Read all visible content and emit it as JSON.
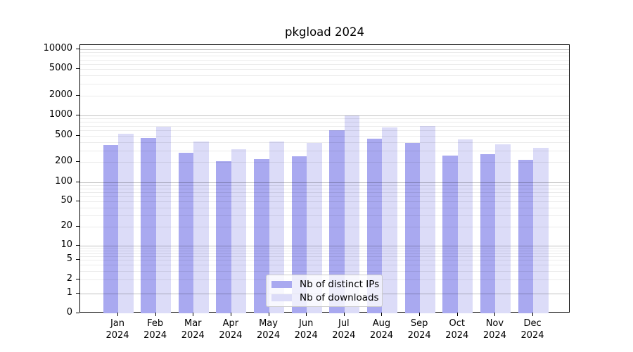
{
  "title": "pkgload 2024",
  "chart_data": {
    "type": "bar",
    "title": "pkgload 2024",
    "categories": [
      "Jan 2024",
      "Feb 2024",
      "Mar 2024",
      "Apr 2024",
      "May 2024",
      "Jun 2024",
      "Jul 2024",
      "Aug 2024",
      "Sep 2024",
      "Oct 2024",
      "Nov 2024",
      "Dec 2024"
    ],
    "series": [
      {
        "name": "Nb of distinct IPs",
        "color": "#a9a9f0",
        "values": [
          360,
          465,
          275,
          205,
          220,
          245,
          605,
          450,
          390,
          250,
          265,
          215
        ]
      },
      {
        "name": "Nb of downloads",
        "color": "#dcdcf8",
        "values": [
          530,
          680,
          405,
          310,
          405,
          385,
          1000,
          670,
          700,
          440,
          370,
          330
        ]
      }
    ],
    "xlabel": "",
    "ylabel": "",
    "yscale": "symlog",
    "ylim": [
      0,
      11600
    ],
    "yticks": [
      0,
      1,
      2,
      5,
      10,
      20,
      50,
      100,
      200,
      500,
      1000,
      2000,
      5000,
      10000
    ],
    "grid": "on",
    "grid_major_at": [
      1,
      10,
      100,
      1000,
      10000
    ],
    "grid_minor": "mantissas 2-9 of each decade 1-10000",
    "legend_position": "lower center inside plot"
  },
  "legend": {
    "items": [
      {
        "label": "Nb of distinct IPs",
        "color": "#a9a9f0"
      },
      {
        "label": "Nb of downloads",
        "color": "#dcdcf8"
      }
    ]
  }
}
